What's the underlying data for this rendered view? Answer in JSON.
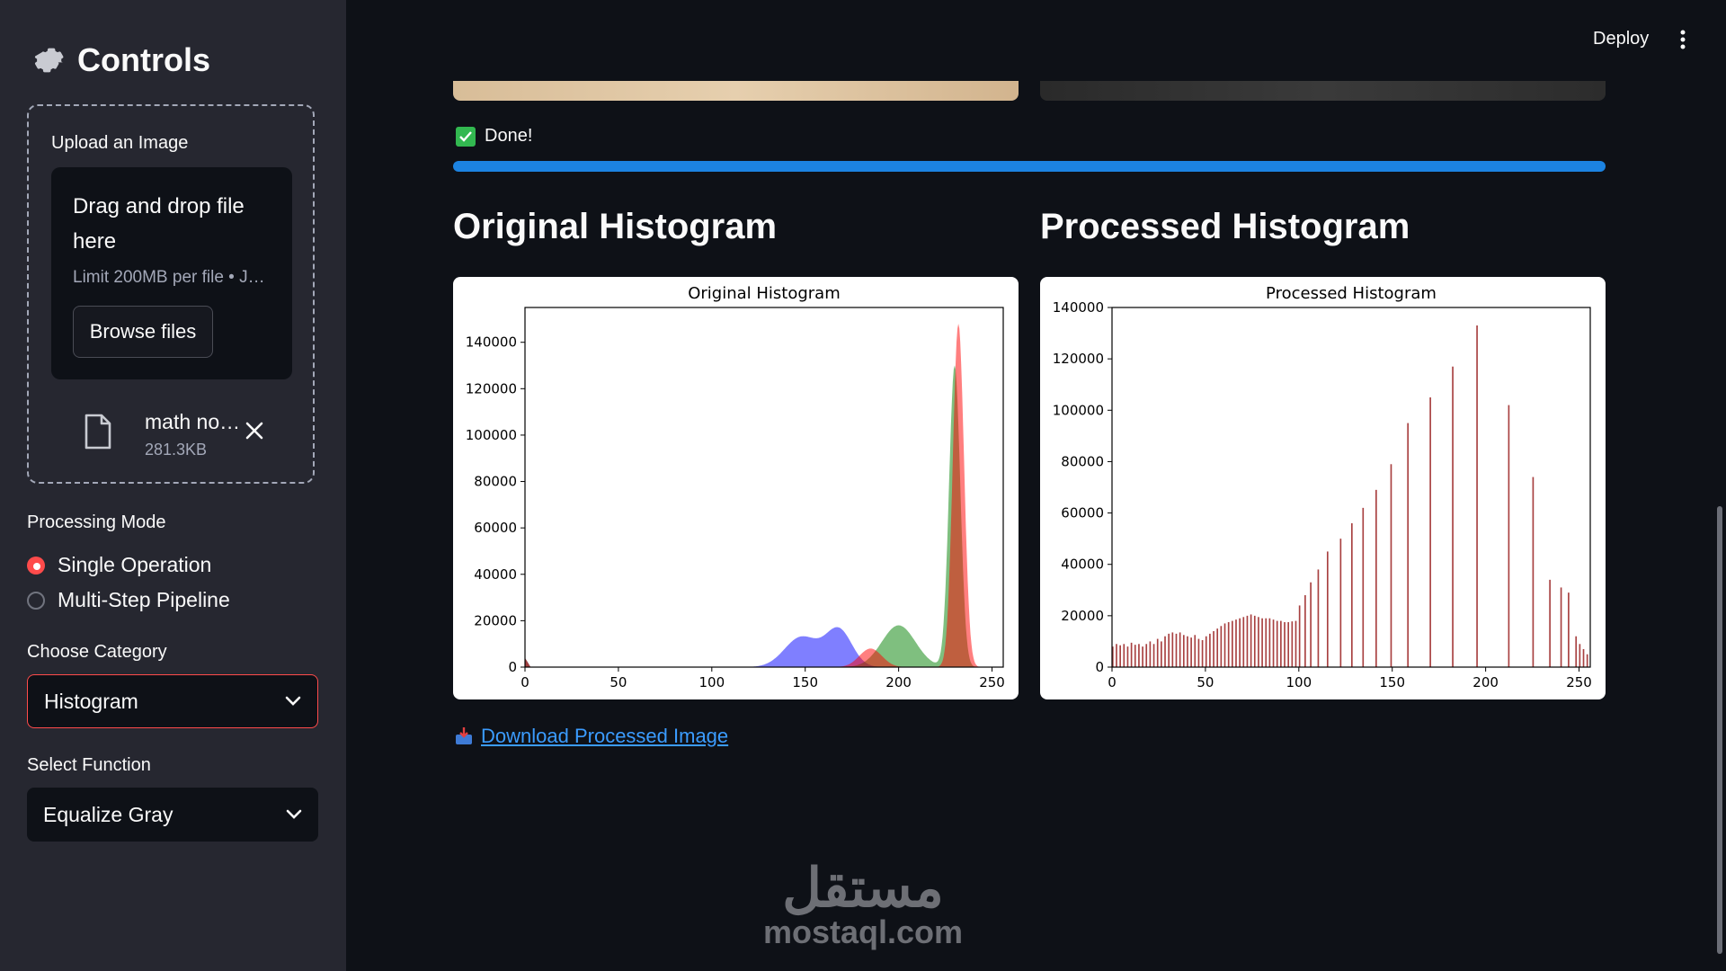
{
  "sidebar": {
    "title": "Controls",
    "icon": "gear-icon",
    "uploader": {
      "label": "Upload an Image",
      "drop_title": "Drag and drop file here",
      "drop_limit": "Limit 200MB per file • J…",
      "browse_label": "Browse files",
      "file": {
        "name": "math no…",
        "size": "281.3KB"
      }
    },
    "mode": {
      "label": "Processing Mode",
      "options": [
        "Single Operation",
        "Multi-Step Pipeline"
      ],
      "selected": "Single Operation"
    },
    "category": {
      "label": "Choose Category",
      "value": "Histogram"
    },
    "function": {
      "label": "Select Function",
      "value": "Equalize Gray"
    }
  },
  "header": {
    "deploy_label": "Deploy"
  },
  "main": {
    "status": "Done!",
    "progress": 1.0,
    "left_heading": "Original Histogram",
    "right_heading": "Processed Histogram",
    "download_label": "Download Processed Image",
    "watermark_ar": "مستقل",
    "watermark_en": "mostaql.com"
  },
  "colors": {
    "accent": "#ff4b4b",
    "progress": "#1c83e1",
    "link": "#3b9cff"
  },
  "chart_data": [
    {
      "type": "histogram",
      "title": "Original Histogram",
      "xlim": [
        0,
        256
      ],
      "ylim": [
        0,
        155000
      ],
      "xticks": [
        0,
        50,
        100,
        150,
        200,
        250
      ],
      "yticks": [
        0,
        20000,
        40000,
        60000,
        80000,
        100000,
        120000,
        140000
      ],
      "series": [
        {
          "color": "#0000ff",
          "peaks": [
            {
              "x": 148,
              "y": 13000,
              "w": 9
            },
            {
              "x": 168,
              "y": 16000,
              "w": 7
            }
          ]
        },
        {
          "color": "#008000",
          "peaks": [
            {
              "x": 200,
              "y": 18000,
              "w": 9
            },
            {
              "x": 230,
              "y": 130000,
              "w": 3
            }
          ]
        },
        {
          "color": "#ff0000",
          "peaks": [
            {
              "x": 185,
              "y": 8000,
              "w": 6
            },
            {
              "x": 232,
              "y": 148000,
              "w": 3
            }
          ]
        }
      ]
    },
    {
      "type": "bar",
      "title": "Processed Histogram",
      "xlim": [
        0,
        256
      ],
      "ylim": [
        0,
        140000
      ],
      "xticks": [
        0,
        50,
        100,
        150,
        200,
        250
      ],
      "yticks": [
        0,
        20000,
        40000,
        60000,
        80000,
        100000,
        120000,
        140000
      ],
      "series": [
        {
          "color": "#8b0000",
          "x": [
            0,
            2,
            4,
            6,
            8,
            10,
            12,
            14,
            16,
            18,
            20,
            22,
            24,
            26,
            28,
            30,
            32,
            34,
            36,
            38,
            40,
            42,
            44,
            46,
            48,
            50,
            52,
            54,
            56,
            58,
            60,
            62,
            64,
            66,
            68,
            70,
            72,
            74,
            76,
            78,
            80,
            82,
            84,
            86,
            88,
            90,
            92,
            94,
            96,
            98,
            100,
            103,
            106,
            110,
            115,
            122,
            128,
            134,
            141,
            149,
            158,
            170,
            182,
            195,
            212,
            225,
            234,
            240,
            244,
            248,
            250,
            252,
            254
          ],
          "y": [
            8000,
            9000,
            8500,
            9000,
            8000,
            9500,
            8700,
            9000,
            8000,
            9000,
            10000,
            9000,
            11000,
            10000,
            12000,
            13000,
            13500,
            13000,
            13500,
            12500,
            12000,
            11500,
            12500,
            11000,
            10500,
            12000,
            13000,
            14000,
            15000,
            16000,
            17000,
            17500,
            18000,
            18500,
            19000,
            19500,
            20000,
            20500,
            20000,
            19500,
            19000,
            19000,
            19000,
            18500,
            18000,
            18000,
            17500,
            17500,
            17800,
            18000,
            24000,
            28000,
            33000,
            38000,
            45000,
            50000,
            56000,
            62000,
            69000,
            79000,
            95000,
            105000,
            117000,
            133000,
            102000,
            74000,
            34000,
            31000,
            29000,
            12000,
            9000,
            7000,
            5000
          ]
        }
      ]
    }
  ]
}
